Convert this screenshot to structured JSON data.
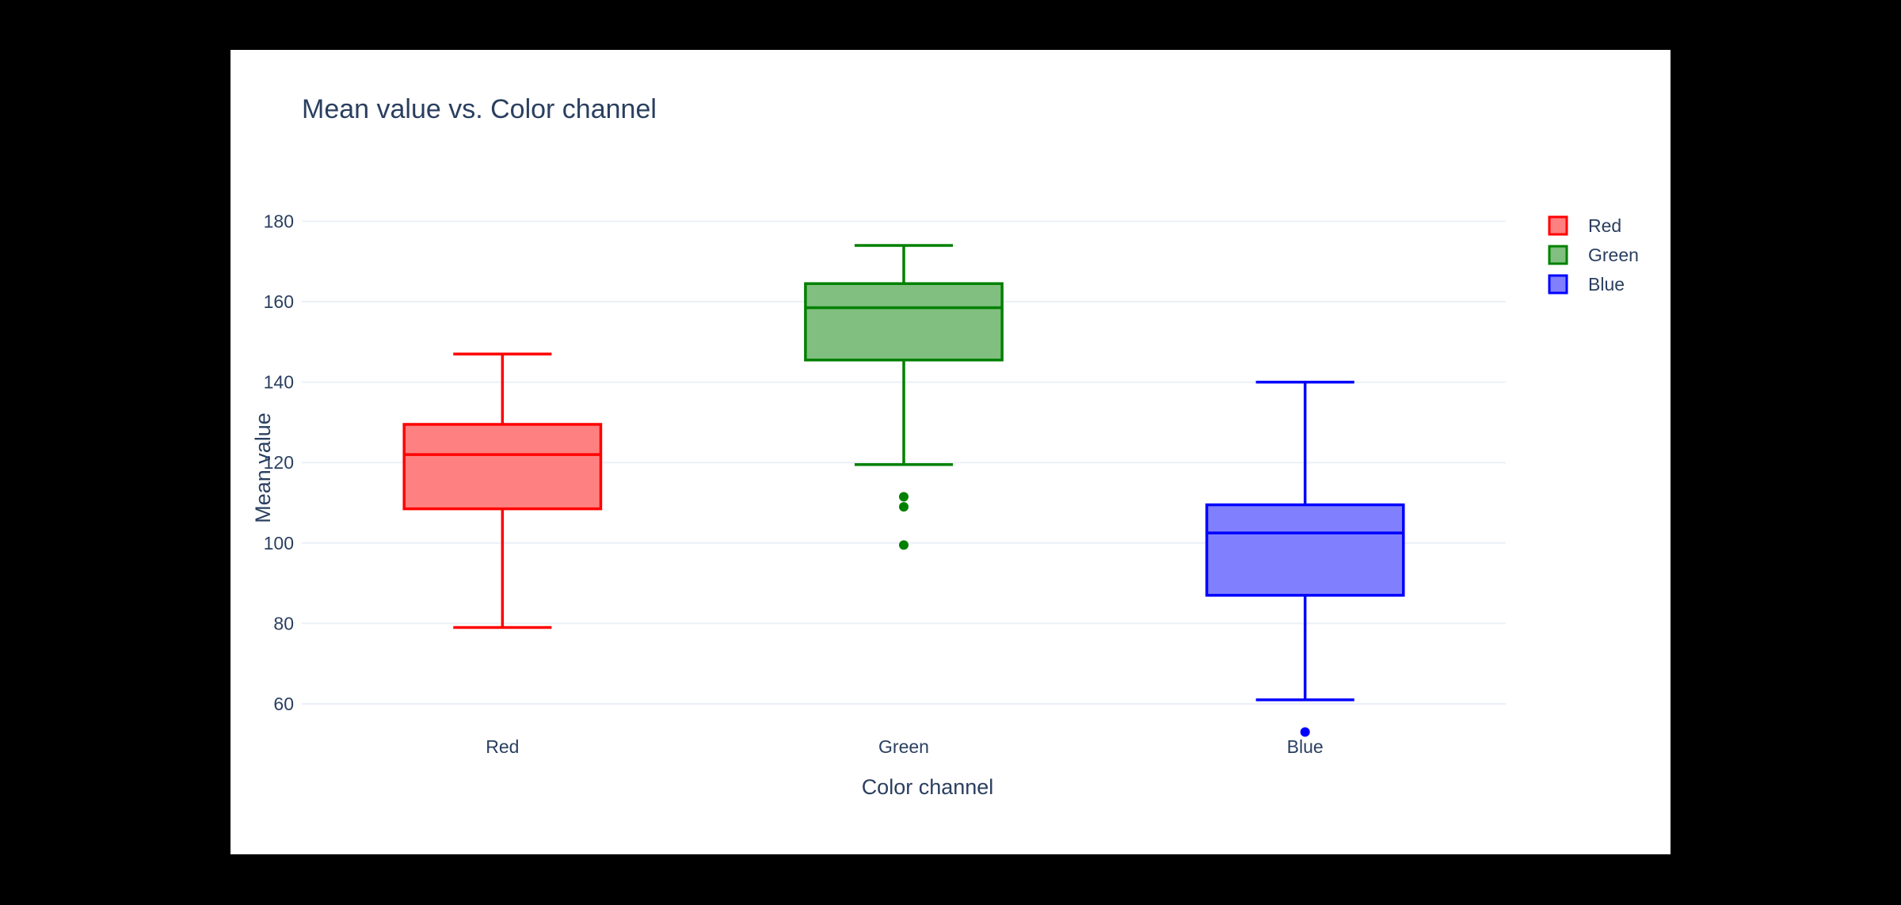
{
  "chart_data": {
    "type": "box",
    "title": "Mean value vs. Color channel",
    "xlabel": "Color channel",
    "ylabel": "Mean value",
    "ylim": [
      47,
      186
    ],
    "yticks": [
      60,
      80,
      100,
      120,
      140,
      160,
      180
    ],
    "categories": [
      "Red",
      "Green",
      "Blue"
    ],
    "grid": true,
    "legend": "top-right",
    "series": [
      {
        "name": "Red",
        "color": "#ff0000",
        "fill": "#ff8080",
        "lowerfence": 79,
        "q1": 108.5,
        "median": 122,
        "q3": 129.5,
        "upperfence": 147,
        "outliers": []
      },
      {
        "name": "Green",
        "color": "#008000",
        "fill": "#80bf80",
        "lowerfence": 119.5,
        "q1": 145.5,
        "median": 158.5,
        "q3": 164.5,
        "upperfence": 174,
        "outliers": [
          111.5,
          109,
          99.5
        ]
      },
      {
        "name": "Blue",
        "color": "#0000ff",
        "fill": "#8080ff",
        "lowerfence": 61,
        "q1": 87,
        "median": 102.5,
        "q3": 109.5,
        "upperfence": 140,
        "outliers": [
          53
        ]
      }
    ]
  }
}
